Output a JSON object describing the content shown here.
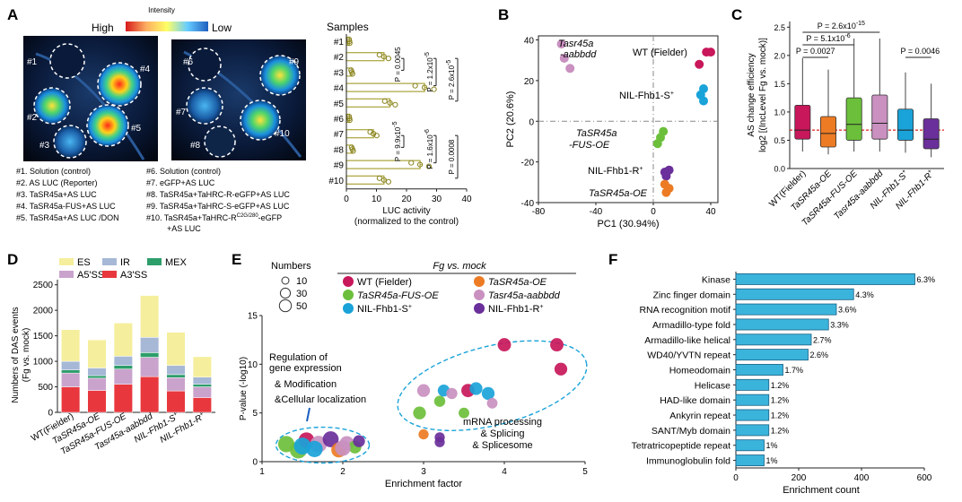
{
  "panels": {
    "A": {
      "letter": "A",
      "intensity_title": "Intensity",
      "high_label": "High",
      "low_label": "Low",
      "samples_label": "Samples",
      "legend_left": [
        "#1. Solution (control)",
        "#2. AS LUC (Reporter)",
        "#3. TaSR45a+AS LUC",
        "#4. TaSR45a-FUS+AS LUC",
        "#5. TaSR45a+AS LUC /DON"
      ],
      "legend_right": [
        "#6. Solution (control)",
        "#7. eGFP+AS LUC",
        "#8. TaSR45a+TaHRC-R-eGFP+AS LUC",
        "#9. TaSR45a+TaHRC-S-eGFP+AS LUC",
        "#10. TaSR45a+TaHRC-R",
        "+AS LUC"
      ],
      "legend_sup": "C2G/280",
      "legend_suffix": "-eGFP",
      "leaf_left_labels": [
        "#1",
        "#2",
        "#3",
        "#4",
        "#5"
      ],
      "leaf_right_labels": [
        "#6",
        "#7",
        "#8",
        "#9",
        "#10"
      ],
      "colors": {
        "bar": "#a9a33a",
        "dot": "#8a8420"
      }
    },
    "B": {
      "letter": "B"
    },
    "C": {
      "letter": "C"
    },
    "D": {
      "letter": "D"
    },
    "E": {
      "letter": "E"
    },
    "F": {
      "letter": "F"
    }
  },
  "chart_data": [
    {
      "id": "A",
      "type": "bar",
      "orientation": "horizontal",
      "categories": [
        "#1",
        "#2",
        "#3",
        "#4",
        "#5",
        "#6",
        "#7",
        "#8",
        "#9",
        "#10"
      ],
      "values": [
        1.0,
        12.5,
        1.8,
        26.0,
        14.5,
        1.0,
        9.0,
        2.0,
        24.5,
        12.5
      ],
      "xlim": [
        0,
        40
      ],
      "xticks": [
        0,
        10,
        20,
        30,
        40
      ],
      "xlabel": "LUC activity",
      "xlabel2": "(normalized to the control)",
      "pvalues": [
        {
          "from": "#2",
          "to": "#3",
          "label": "P = 0.0045"
        },
        {
          "from": "#2",
          "to": "#4",
          "label": "P = 1.2x10",
          "sup": "-5"
        },
        {
          "from": "#2",
          "to": "#5",
          "label": "P = 2.6x10",
          "sup": "-5"
        },
        {
          "from": "#7",
          "to": "#8",
          "label": "P = 9.9x10",
          "sup": "-5"
        },
        {
          "from": "#7",
          "to": "#9",
          "label": "P = 1.6x10",
          "sup": "-6"
        },
        {
          "from": "#7",
          "to": "#10",
          "label": "P = 0.0008"
        }
      ]
    },
    {
      "id": "B",
      "type": "scatter",
      "xlabel": "PC1 (30.94%)",
      "ylabel": "PC2 (20.6%)",
      "xlim": [
        -80,
        45
      ],
      "ylim": [
        -40,
        42
      ],
      "xticks": [
        -80,
        -40,
        0,
        40
      ],
      "yticks": [
        -40,
        -20,
        0,
        20,
        40
      ],
      "groups": [
        {
          "name": "Tasr45a",
          "name2": "-aabbdd",
          "color": "#c990c0",
          "points": [
            [
              -64,
              38
            ],
            [
              -62,
              31
            ],
            [
              -58,
              26
            ]
          ]
        },
        {
          "name": "WT (Fielder)",
          "color": "#c8175a",
          "points": [
            [
              37,
              34
            ],
            [
              40,
              34
            ],
            [
              32,
              28
            ]
          ]
        },
        {
          "name": "NIL-Fhb1-S",
          "sup": "+",
          "color": "#1aa3d9",
          "points": [
            [
              35,
              16
            ],
            [
              33,
              13
            ],
            [
              35,
              10
            ]
          ]
        },
        {
          "name": "TaSR45a",
          "name2": "-FUS-OE",
          "color": "#6cbf3b",
          "points": [
            [
              7,
              -5
            ],
            [
              5,
              -8
            ],
            [
              3,
              -11
            ]
          ]
        },
        {
          "name": "NIL-Fhb1-R",
          "sup": "+",
          "color": "#6a2f9a",
          "points": [
            [
              8,
              -25
            ],
            [
              11,
              -24
            ],
            [
              9,
              -27
            ]
          ]
        },
        {
          "name": "TaSR45a-OE",
          "color": "#ec7b24",
          "points": [
            [
              8,
              -31
            ],
            [
              11,
              -33
            ],
            [
              9,
              -35
            ]
          ]
        }
      ]
    },
    {
      "id": "C",
      "type": "box",
      "categories": [
        "WT(Fielder)",
        "TaSR45a-OE",
        "TaSR45a-FUS-OE",
        "Tasr45a-aabbdd",
        "NIL-Fhb1-S",
        "NIL-Fhb1-R"
      ],
      "category_sups": [
        "",
        "",
        "",
        "",
        "+",
        "+"
      ],
      "colors": [
        "#c8175a",
        "#ec7b24",
        "#6cbf3b",
        "#c990c0",
        "#1aa3d9",
        "#6a2f9a"
      ],
      "boxes": [
        {
          "min": 0.3,
          "q1": 0.52,
          "median": 0.68,
          "q3": 1.12,
          "max": 1.95
        },
        {
          "min": 0.25,
          "q1": 0.38,
          "median": 0.62,
          "q3": 0.92,
          "max": 1.75
        },
        {
          "min": 0.3,
          "q1": 0.5,
          "median": 0.78,
          "q3": 1.25,
          "max": 2.3
        },
        {
          "min": 0.3,
          "q1": 0.52,
          "median": 0.8,
          "q3": 1.3,
          "max": 2.3
        },
        {
          "min": 0.28,
          "q1": 0.5,
          "median": 0.68,
          "q3": 1.05,
          "max": 1.7
        },
        {
          "min": 0.2,
          "q1": 0.35,
          "median": 0.52,
          "q3": 0.88,
          "max": 1.5
        }
      ],
      "ylim": [
        0,
        2.6
      ],
      "yticks": [
        0.0,
        0.5,
        1.0,
        1.5,
        2.0,
        2.5
      ],
      "ytick_labels": [
        "0.0",
        "0.5",
        "1.0",
        "1.5",
        "2.0",
        "2.5"
      ],
      "reference_line": 0.68,
      "ylabel": "AS change efficiency",
      "ylabel2": "log2 [(IncLevel Fg vs. mock)]",
      "pvalues": [
        {
          "from": 0,
          "to": 3,
          "label": "P = 2.6x10",
          "sup": "-15"
        },
        {
          "from": 0,
          "to": 2,
          "label": "P = 5.1x10",
          "sup": "-6"
        },
        {
          "from": 0,
          "to": 1,
          "label": "P = 0.0027"
        },
        {
          "from": 4,
          "to": 5,
          "label": "P = 0.0046"
        }
      ]
    },
    {
      "id": "D",
      "type": "bar",
      "stacked": true,
      "categories": [
        "WT(Fielder)",
        "TaSR45a-OE",
        "TaSR45a-FUS-OE",
        "Tasr45a-aabbdd",
        "NIL-Fhb1-S",
        "NIL-Fhb1-R"
      ],
      "category_sups": [
        "",
        "",
        "",
        "",
        "+",
        "+"
      ],
      "series": [
        {
          "name": "A3'SS",
          "color": "#e8383d",
          "values": [
            500,
            430,
            550,
            700,
            420,
            290
          ]
        },
        {
          "name": "A5'SS",
          "color": "#c9a3cc",
          "values": [
            270,
            240,
            300,
            380,
            260,
            210
          ]
        },
        {
          "name": "MEX",
          "color": "#2d9e6a",
          "values": [
            60,
            50,
            70,
            90,
            60,
            50
          ]
        },
        {
          "name": "IR",
          "color": "#a6b8d6",
          "values": [
            170,
            150,
            180,
            300,
            180,
            140
          ]
        },
        {
          "name": "ES",
          "color": "#f5ee9c",
          "values": [
            620,
            550,
            650,
            820,
            650,
            400
          ]
        }
      ],
      "legend_order": [
        "ES",
        "IR",
        "MEX",
        "A5'SS",
        "A3'SS"
      ],
      "ylim": [
        0,
        2600
      ],
      "yticks": [
        0,
        500,
        1000,
        1500,
        2000,
        2500
      ],
      "ylabel": "Numbers of DAS events",
      "ylabel2": "(Fg vs. mock)"
    },
    {
      "id": "E",
      "type": "scatter",
      "xlabel": "Enrichment factor",
      "ylabel": "P-value (-log10)",
      "xlim": [
        1,
        5
      ],
      "ylim": [
        0,
        15
      ],
      "xticks": [
        1,
        2,
        3,
        4,
        5
      ],
      "yticks": [
        0,
        5,
        10,
        15
      ],
      "size_title": "Numbers",
      "size_legend": [
        10,
        30,
        50
      ],
      "color_legend_title": "Fg vs. mock",
      "color_legend": [
        {
          "name": "WT (Fielder)",
          "color": "#c8175a"
        },
        {
          "name": "TaSR45a-OE",
          "color": "#ec7b24"
        },
        {
          "name": "TaSR45a-FUS-OE",
          "color": "#6cbf3b"
        },
        {
          "name": "Tasr45a-aabbdd",
          "color": "#c990c0"
        },
        {
          "name": "NIL-Fhb1-S",
          "sup": "+",
          "color": "#1aa3d9"
        },
        {
          "name": "NIL-Fhb1-R",
          "sup": "+",
          "color": "#6a2f9a"
        }
      ],
      "annotations": [
        "Regulation of",
        "gene expression",
        "& Modification",
        "&Cellular localization",
        "mRNA processing",
        "& Splicing",
        "& Splicesome"
      ],
      "points": [
        {
          "x": 1.3,
          "y": 1.8,
          "n": 45,
          "color": "#6cbf3b"
        },
        {
          "x": 1.45,
          "y": 1.2,
          "n": 50,
          "color": "#6cbf3b"
        },
        {
          "x": 1.55,
          "y": 2.2,
          "n": 40,
          "color": "#c8175a"
        },
        {
          "x": 1.7,
          "y": 1.8,
          "n": 48,
          "color": "#c990c0"
        },
        {
          "x": 1.85,
          "y": 2.3,
          "n": 42,
          "color": "#6a2f9a"
        },
        {
          "x": 1.65,
          "y": 1.3,
          "n": 45,
          "color": "#1aa3d9"
        },
        {
          "x": 1.95,
          "y": 1.2,
          "n": 35,
          "color": "#ec7b24"
        },
        {
          "x": 2.05,
          "y": 1.9,
          "n": 30,
          "color": "#c990c0"
        },
        {
          "x": 2.15,
          "y": 1.5,
          "n": 22,
          "color": "#6cbf3b"
        },
        {
          "x": 2.2,
          "y": 2.1,
          "n": 18,
          "color": "#6a2f9a"
        },
        {
          "x": 1.5,
          "y": 1.6,
          "n": 50,
          "color": "#1aa3d9"
        },
        {
          "x": 2.0,
          "y": 1.4,
          "n": 40,
          "color": "#c990c0"
        },
        {
          "x": 2.95,
          "y": 5.0,
          "n": 22,
          "color": "#6cbf3b"
        },
        {
          "x": 3.0,
          "y": 7.3,
          "n": 22,
          "color": "#c990c0"
        },
        {
          "x": 3.0,
          "y": 2.8,
          "n": 10,
          "color": "#ec7b24"
        },
        {
          "x": 3.2,
          "y": 6.2,
          "n": 14,
          "color": "#6cbf3b"
        },
        {
          "x": 3.25,
          "y": 7.3,
          "n": 18,
          "color": "#1aa3d9"
        },
        {
          "x": 3.2,
          "y": 2.5,
          "n": 10,
          "color": "#6a2f9a"
        },
        {
          "x": 3.2,
          "y": 2.0,
          "n": 10,
          "color": "#6a2f9a"
        },
        {
          "x": 3.35,
          "y": 7.0,
          "n": 14,
          "color": "#c990c0"
        },
        {
          "x": 3.5,
          "y": 5.0,
          "n": 12,
          "color": "#6cbf3b"
        },
        {
          "x": 3.55,
          "y": 7.3,
          "n": 25,
          "color": "#c8175a"
        },
        {
          "x": 3.65,
          "y": 7.5,
          "n": 22,
          "color": "#1aa3d9"
        },
        {
          "x": 3.8,
          "y": 7.0,
          "n": 22,
          "color": "#1aa3d9"
        },
        {
          "x": 3.85,
          "y": 6.0,
          "n": 12,
          "color": "#c990c0"
        },
        {
          "x": 4.0,
          "y": 12.0,
          "n": 25,
          "color": "#c8175a"
        },
        {
          "x": 4.65,
          "y": 12.0,
          "n": 25,
          "color": "#c8175a"
        },
        {
          "x": 4.7,
          "y": 9.5,
          "n": 22,
          "color": "#c8175a"
        }
      ]
    },
    {
      "id": "F",
      "type": "bar",
      "orientation": "horizontal",
      "categories": [
        "Kinase",
        "Zinc finger domain",
        "RNA recognition motif",
        "Armadillo-type fold",
        "Armadillo-like helical",
        "WD40/YVTN repeat",
        "Homeodomain",
        "Helicase",
        "HAD-like domain",
        "Ankyrin repeat",
        "SANT/Myb domain",
        "Tetratricopeptide repeat",
        "Immunoglobulin fold"
      ],
      "values": [
        570,
        375,
        320,
        295,
        240,
        230,
        150,
        105,
        105,
        105,
        105,
        90,
        90
      ],
      "percent_labels": [
        "6.3%",
        "4.3%",
        "3.6%",
        "3.3%",
        "2.7%",
        "2.6%",
        "1.7%",
        "1.2%",
        "1.2%",
        "1.2%",
        "1.2%",
        "1%",
        "1%"
      ],
      "color": "#3bb4dc",
      "xlim": [
        0,
        600
      ],
      "xticks": [
        0,
        200,
        400,
        600
      ],
      "xlabel": "Enrichment count"
    }
  ]
}
